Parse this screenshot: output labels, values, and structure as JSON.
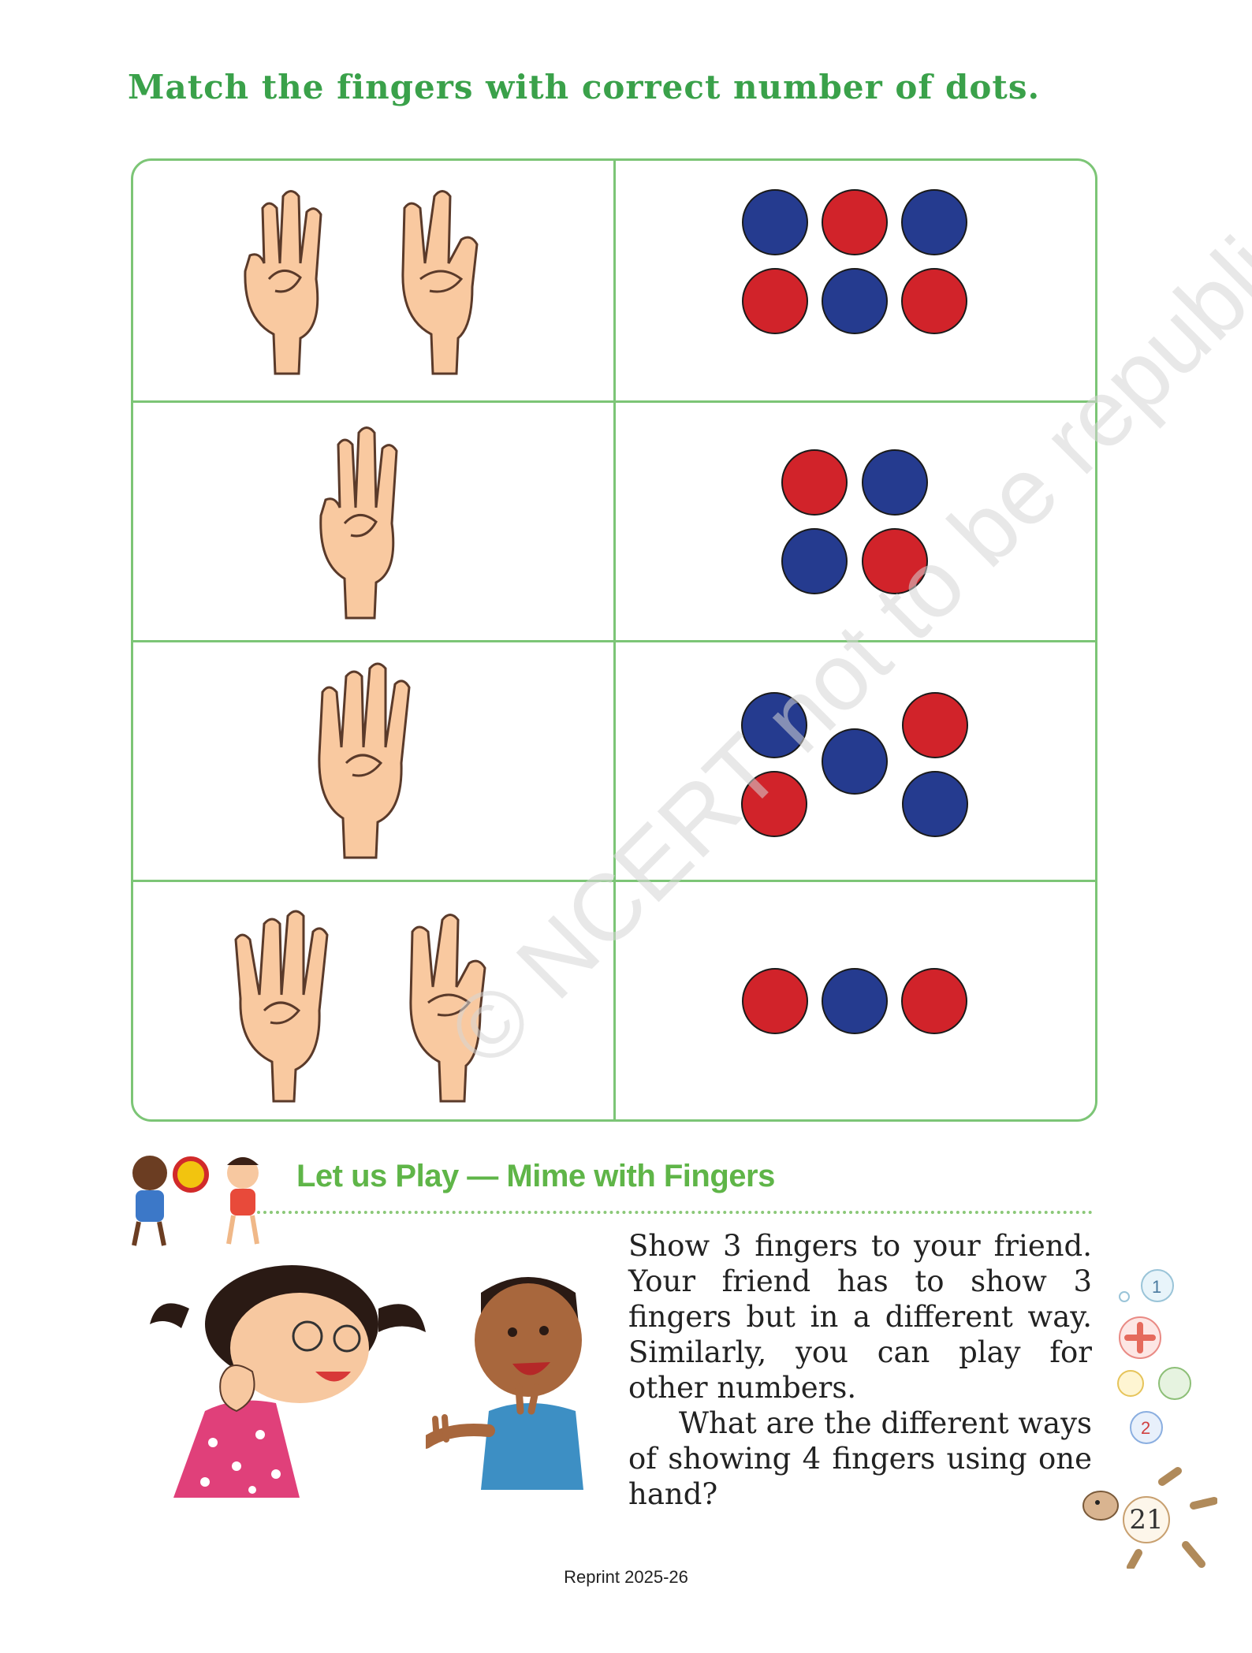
{
  "title": "Match the fingers with correct number of dots.",
  "rows": [
    {
      "hands": [
        "three-fingers-hand-icon",
        "two-fingers-hand-icon"
      ],
      "dots": [
        "blue",
        "red",
        "blue",
        "red",
        "blue",
        "red"
      ]
    },
    {
      "hands": [
        "three-fingers-hand-icon"
      ],
      "dots": [
        "red",
        "blue",
        "blue",
        "red"
      ]
    },
    {
      "hands": [
        "four-fingers-hand-icon"
      ],
      "dots": [
        "blue",
        "red",
        "blue",
        "red",
        "blue"
      ]
    },
    {
      "hands": [
        "four-fingers-hand-icon",
        "two-fingers-hand-icon"
      ],
      "dots": [
        "red",
        "blue",
        "red"
      ]
    }
  ],
  "colors": {
    "red": "#d1232a",
    "blue": "#253b8f",
    "accent": "#3aa14a",
    "border": "#7cc576"
  },
  "section": {
    "heading": "Let us Play — Mime with Fingers",
    "paragraph1": "Show 3 fingers to your friend. Your friend has to show 3 fingers but in a different way. Similarly, you can play for other numbers.",
    "paragraph2": "What are the different ways of showing 4 fingers using one hand?"
  },
  "watermark": "© NCERT not to be republished",
  "page_number": "21",
  "footer": "Reprint 2025-26"
}
